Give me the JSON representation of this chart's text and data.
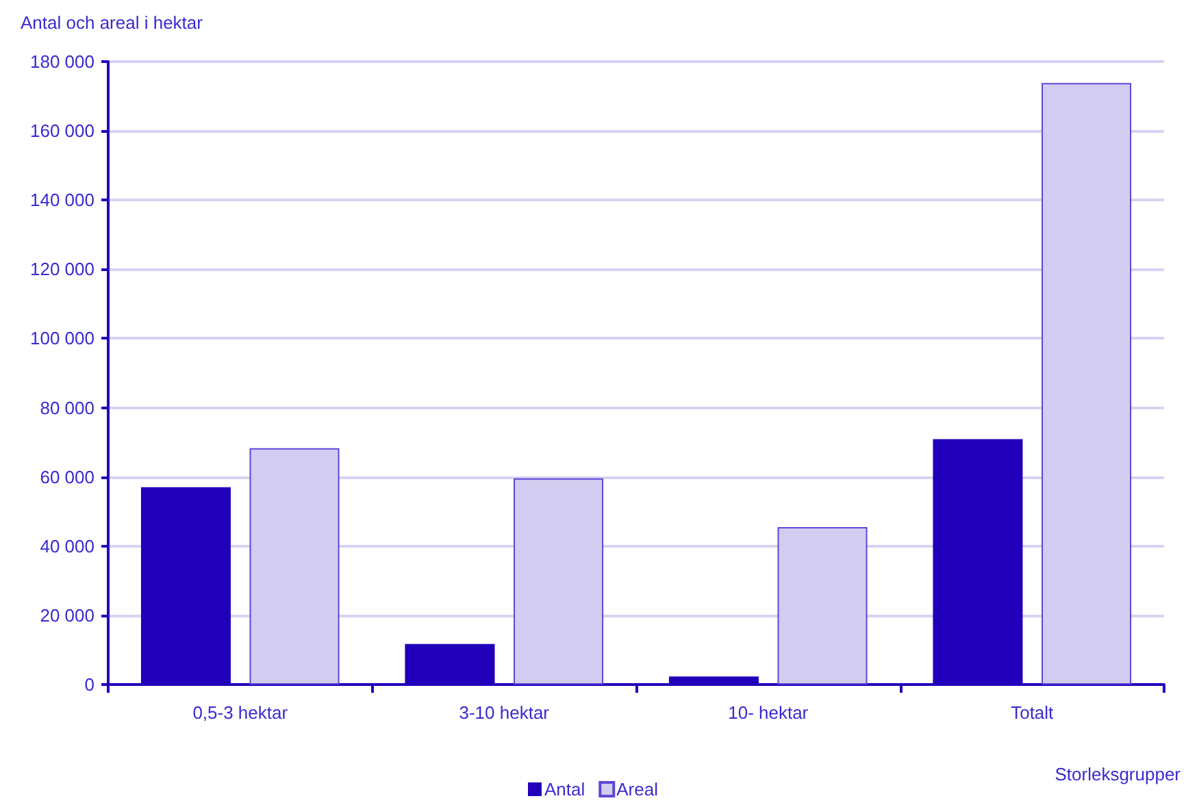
{
  "chart_data": {
    "type": "bar",
    "ylabel": "Antal och areal i hektar",
    "xlabel": "Storleksgrupper",
    "categories": [
      "0,5-3 hektar",
      "3-10 hektar",
      "10- hektar",
      "Totalt"
    ],
    "series": [
      {
        "name": "Antal",
        "color": "#2200bb",
        "values": [
          57000,
          11700,
          2300,
          70900
        ]
      },
      {
        "name": "Areal",
        "color": "#d2cdf0",
        "values": [
          68300,
          59600,
          45500,
          173800
        ]
      }
    ],
    "ylim": [
      0,
      180000
    ],
    "yticks": [
      0,
      {
        "value": 20000,
        "label": "20 000"
      },
      {
        "value": 40000,
        "label": "40 000"
      },
      {
        "value": 60000,
        "label": "60 000"
      },
      {
        "value": 80000,
        "label": "80 000"
      },
      {
        "value": 100000,
        "label": "100 000"
      },
      {
        "value": 120000,
        "label": "120 000"
      },
      {
        "value": 140000,
        "label": "140 000"
      },
      {
        "value": 160000,
        "label": "160 000"
      },
      {
        "value": 180000,
        "label": "180 000"
      }
    ],
    "grid": "y",
    "legend": "bottom"
  }
}
